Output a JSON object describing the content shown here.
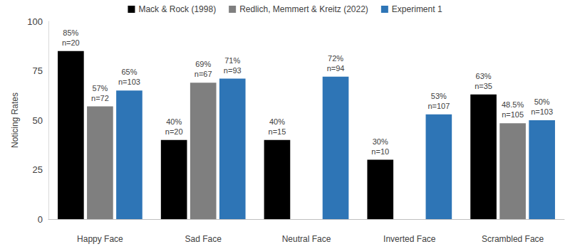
{
  "chart_data": {
    "type": "bar",
    "y_label": "Noticing Rates",
    "categories": [
      "Happy Face",
      "Sad Face",
      "Neutral Face",
      "Inverted Face",
      "Scrambled Face"
    ],
    "series": [
      {
        "name": "Mack & Rock (1998)",
        "color": "#000000",
        "values": [
          85,
          40,
          40,
          30,
          63
        ],
        "value_labels": [
          "85%\nn=20",
          "40%\nn=20",
          "40%\nn=15",
          "30%\nn=10",
          "63%\nn=35"
        ]
      },
      {
        "name": "Redlich, Memmert & Kreitz (2022)",
        "color": "#7f7f7f",
        "values": [
          57,
          69,
          null,
          null,
          48.5
        ],
        "value_labels": [
          "57%\nn=72",
          "69%\nn=67",
          null,
          null,
          "48.5%\nn=105"
        ]
      },
      {
        "name": "Experiment 1",
        "color": "#2e75b6",
        "values": [
          65,
          71,
          72,
          53,
          50
        ],
        "value_labels": [
          "65%\nn=103",
          "71%\nn=93",
          "72%\nn=94",
          "53%\nn=107",
          "50%\nn=103"
        ]
      }
    ],
    "ylim": [
      0,
      100
    ],
    "yticks": [
      0,
      25,
      50,
      75,
      100
    ],
    "grid": false,
    "legend": "top",
    "data_labels": true
  }
}
